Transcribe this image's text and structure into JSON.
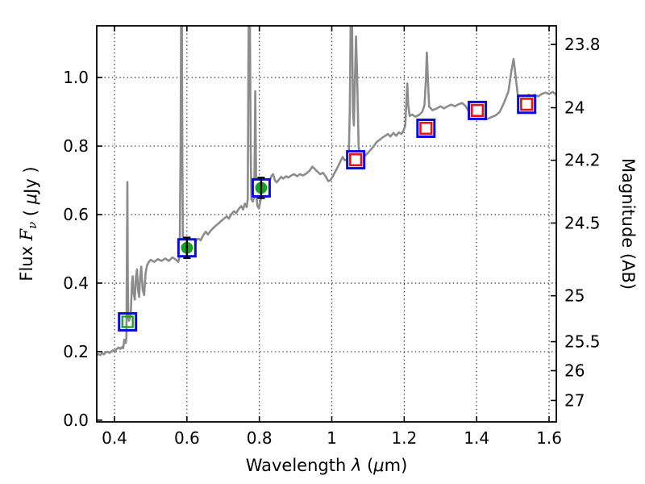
{
  "figure": {
    "background": "#ffffff",
    "border_color": "#000000",
    "grid_color": "#3a3a3a",
    "grid_style": "dotted"
  },
  "chart_data": {
    "type": "line",
    "title": "",
    "xlabel_parts": [
      {
        "t": "Wavelength  ",
        "i": false
      },
      {
        "t": "λ",
        "i": true
      },
      {
        "t": " (",
        "i": false
      },
      {
        "t": "μ",
        "i": true
      },
      {
        "t": "m)",
        "i": false
      }
    ],
    "ylabel_parts": [
      {
        "t": "Flux  ",
        "i": false
      },
      {
        "t": "F",
        "i": true,
        "serif": true
      },
      {
        "t": "ν",
        "i": true,
        "serif": true,
        "sub": true
      },
      {
        "t": "  ( ",
        "i": false
      },
      {
        "t": "μ",
        "i": true
      },
      {
        "t": "Jy )",
        "i": false
      }
    ],
    "y2label": "Magnitude (AB)",
    "x_range": [
      0.351,
      1.62
    ],
    "y_range": [
      -0.005,
      1.151
    ],
    "grid": true,
    "legend": "none",
    "x_ticks": [
      {
        "v": 0.4,
        "label": "0.4"
      },
      {
        "v": 0.6,
        "label": "0.6"
      },
      {
        "v": 0.8,
        "label": "0.8"
      },
      {
        "v": 1.0,
        "label": "1"
      },
      {
        "v": 1.2,
        "label": "1.2"
      },
      {
        "v": 1.4,
        "label": "1.4"
      },
      {
        "v": 1.6,
        "label": "1.6"
      }
    ],
    "y_ticks": [
      {
        "v": 0.0,
        "label": "0.0"
      },
      {
        "v": 0.2,
        "label": "0.2"
      },
      {
        "v": 0.4,
        "label": "0.4"
      },
      {
        "v": 0.6,
        "label": "0.6"
      },
      {
        "v": 0.8,
        "label": "0.8"
      },
      {
        "v": 1.0,
        "label": "1.0"
      }
    ],
    "y2_ticks": [
      {
        "label": "23.8",
        "flux": 1.0965
      },
      {
        "label": "24",
        "flux": 0.912
      },
      {
        "label": "24.2",
        "flux": 0.7586
      },
      {
        "label": "24.5",
        "flux": 0.5754
      },
      {
        "label": "25",
        "flux": 0.3631
      },
      {
        "label": "25.5",
        "flux": 0.2291
      },
      {
        "label": "26",
        "flux": 0.1445
      },
      {
        "label": "27",
        "flux": 0.0575
      }
    ],
    "colors": {
      "spectrum": "#8c8c8c",
      "blue_square": "#0a0ae6",
      "red_square": "#e81414",
      "green_marker": "#17a317",
      "errorbar": "#000000"
    },
    "spectrum_name": "galaxy-model-spectrum",
    "spectrum": [
      [
        0.351,
        0.19
      ],
      [
        0.356,
        0.193
      ],
      [
        0.361,
        0.19
      ],
      [
        0.366,
        0.196
      ],
      [
        0.371,
        0.192
      ],
      [
        0.376,
        0.198
      ],
      [
        0.381,
        0.2
      ],
      [
        0.386,
        0.196
      ],
      [
        0.391,
        0.2
      ],
      [
        0.396,
        0.204
      ],
      [
        0.401,
        0.2
      ],
      [
        0.406,
        0.208
      ],
      [
        0.411,
        0.212
      ],
      [
        0.416,
        0.208
      ],
      [
        0.42,
        0.213
      ],
      [
        0.424,
        0.21
      ],
      [
        0.427,
        0.235
      ],
      [
        0.429,
        0.23
      ],
      [
        0.431,
        0.225
      ],
      [
        0.433,
        0.24
      ],
      [
        0.4343,
        0.47
      ],
      [
        0.4355,
        0.695
      ],
      [
        0.4367,
        0.42
      ],
      [
        0.438,
        0.3
      ],
      [
        0.44,
        0.29
      ],
      [
        0.442,
        0.296
      ],
      [
        0.445,
        0.31
      ],
      [
        0.448,
        0.395
      ],
      [
        0.45,
        0.42
      ],
      [
        0.453,
        0.37
      ],
      [
        0.456,
        0.352
      ],
      [
        0.459,
        0.415
      ],
      [
        0.462,
        0.44
      ],
      [
        0.465,
        0.38
      ],
      [
        0.468,
        0.36
      ],
      [
        0.471,
        0.42
      ],
      [
        0.474,
        0.448
      ],
      [
        0.478,
        0.38
      ],
      [
        0.482,
        0.365
      ],
      [
        0.486,
        0.43
      ],
      [
        0.49,
        0.452
      ],
      [
        0.495,
        0.462
      ],
      [
        0.5,
        0.468
      ],
      [
        0.51,
        0.462
      ],
      [
        0.52,
        0.47
      ],
      [
        0.53,
        0.465
      ],
      [
        0.54,
        0.472
      ],
      [
        0.55,
        0.465
      ],
      [
        0.56,
        0.475
      ],
      [
        0.57,
        0.468
      ],
      [
        0.576,
        0.462
      ],
      [
        0.58,
        0.48
      ],
      [
        0.5825,
        0.8
      ],
      [
        0.5838,
        1.151
      ],
      [
        0.5862,
        1.151
      ],
      [
        0.5875,
        0.75
      ],
      [
        0.589,
        0.53
      ],
      [
        0.592,
        0.505
      ],
      [
        0.596,
        0.5
      ],
      [
        0.6,
        0.505
      ],
      [
        0.605,
        0.5
      ],
      [
        0.61,
        0.51
      ],
      [
        0.618,
        0.515
      ],
      [
        0.625,
        0.525
      ],
      [
        0.632,
        0.53
      ],
      [
        0.638,
        0.525
      ],
      [
        0.645,
        0.54
      ],
      [
        0.652,
        0.55
      ],
      [
        0.658,
        0.542
      ],
      [
        0.665,
        0.552
      ],
      [
        0.672,
        0.56
      ],
      [
        0.68,
        0.568
      ],
      [
        0.688,
        0.575
      ],
      [
        0.695,
        0.582
      ],
      [
        0.702,
        0.588
      ],
      [
        0.71,
        0.595
      ],
      [
        0.716,
        0.588
      ],
      [
        0.722,
        0.6
      ],
      [
        0.73,
        0.61
      ],
      [
        0.736,
        0.604
      ],
      [
        0.742,
        0.615
      ],
      [
        0.75,
        0.625
      ],
      [
        0.755,
        0.615
      ],
      [
        0.76,
        0.632
      ],
      [
        0.765,
        0.622
      ],
      [
        0.768,
        0.645
      ],
      [
        0.7695,
        1.0
      ],
      [
        0.7705,
        1.151
      ],
      [
        0.774,
        1.151
      ],
      [
        0.776,
        0.8
      ],
      [
        0.778,
        0.645
      ],
      [
        0.782,
        0.638
      ],
      [
        0.786,
        0.652
      ],
      [
        0.7888,
        0.96
      ],
      [
        0.7915,
        0.655
      ],
      [
        0.795,
        0.625
      ],
      [
        0.799,
        0.618
      ],
      [
        0.803,
        0.64
      ],
      [
        0.807,
        0.662
      ],
      [
        0.811,
        0.678
      ],
      [
        0.816,
        0.69
      ],
      [
        0.822,
        0.7
      ],
      [
        0.827,
        0.694
      ],
      [
        0.833,
        0.712
      ],
      [
        0.838,
        0.718
      ],
      [
        0.843,
        0.7
      ],
      [
        0.848,
        0.694
      ],
      [
        0.854,
        0.702
      ],
      [
        0.86,
        0.71
      ],
      [
        0.866,
        0.705
      ],
      [
        0.874,
        0.712
      ],
      [
        0.88,
        0.708
      ],
      [
        0.888,
        0.714
      ],
      [
        0.896,
        0.718
      ],
      [
        0.904,
        0.712
      ],
      [
        0.912,
        0.718
      ],
      [
        0.92,
        0.714
      ],
      [
        0.93,
        0.72
      ],
      [
        0.94,
        0.73
      ],
      [
        0.946,
        0.74
      ],
      [
        0.952,
        0.734
      ],
      [
        0.96,
        0.726
      ],
      [
        0.968,
        0.718
      ],
      [
        0.976,
        0.722
      ],
      [
        0.984,
        0.71
      ],
      [
        0.99,
        0.698
      ],
      [
        0.996,
        0.7
      ],
      [
        1.002,
        0.71
      ],
      [
        1.01,
        0.726
      ],
      [
        1.018,
        0.742
      ],
      [
        1.025,
        0.758
      ],
      [
        1.03,
        0.768
      ],
      [
        1.036,
        0.758
      ],
      [
        1.042,
        0.762
      ],
      [
        1.047,
        0.775
      ],
      [
        1.0497,
        0.9
      ],
      [
        1.052,
        1.151
      ],
      [
        1.056,
        1.151
      ],
      [
        1.0585,
        0.9
      ],
      [
        1.061,
        0.86
      ],
      [
        1.064,
        1.0
      ],
      [
        1.067,
        1.12
      ],
      [
        1.07,
        1.0
      ],
      [
        1.074,
        0.8
      ],
      [
        1.078,
        0.772
      ],
      [
        1.085,
        0.766
      ],
      [
        1.092,
        0.772
      ],
      [
        1.1,
        0.78
      ],
      [
        1.108,
        0.79
      ],
      [
        1.116,
        0.8
      ],
      [
        1.124,
        0.812
      ],
      [
        1.132,
        0.818
      ],
      [
        1.14,
        0.825
      ],
      [
        1.148,
        0.83
      ],
      [
        1.155,
        0.835
      ],
      [
        1.162,
        0.828
      ],
      [
        1.17,
        0.838
      ],
      [
        1.178,
        0.83
      ],
      [
        1.185,
        0.84
      ],
      [
        1.192,
        0.835
      ],
      [
        1.198,
        0.845
      ],
      [
        1.203,
        0.86
      ],
      [
        1.206,
        0.93
      ],
      [
        1.2085,
        0.983
      ],
      [
        1.211,
        0.92
      ],
      [
        1.215,
        0.888
      ],
      [
        1.222,
        0.892
      ],
      [
        1.23,
        0.886
      ],
      [
        1.24,
        0.89
      ],
      [
        1.25,
        0.9
      ],
      [
        1.256,
        0.92
      ],
      [
        1.26,
        0.995
      ],
      [
        1.2625,
        1.073
      ],
      [
        1.2655,
        0.99
      ],
      [
        1.269,
        0.915
      ],
      [
        1.278,
        0.905
      ],
      [
        1.29,
        0.91
      ],
      [
        1.3,
        0.916
      ],
      [
        1.31,
        0.91
      ],
      [
        1.32,
        0.916
      ],
      [
        1.33,
        0.921
      ],
      [
        1.34,
        0.916
      ],
      [
        1.35,
        0.922
      ],
      [
        1.36,
        0.926
      ],
      [
        1.364,
        0.922
      ],
      [
        1.37,
        0.916
      ],
      [
        1.376,
        0.905
      ],
      [
        1.382,
        0.892
      ],
      [
        1.39,
        0.898
      ],
      [
        1.398,
        0.902
      ],
      [
        1.406,
        0.895
      ],
      [
        1.414,
        0.882
      ],
      [
        1.422,
        0.878
      ],
      [
        1.432,
        0.88
      ],
      [
        1.442,
        0.885
      ],
      [
        1.453,
        0.89
      ],
      [
        1.464,
        0.9
      ],
      [
        1.475,
        0.925
      ],
      [
        1.488,
        0.96
      ],
      [
        1.496,
        1.02
      ],
      [
        1.502,
        1.054
      ],
      [
        1.508,
        1.0
      ],
      [
        1.514,
        0.945
      ],
      [
        1.52,
        0.932
      ],
      [
        1.528,
        0.938
      ],
      [
        1.536,
        0.945
      ],
      [
        1.544,
        0.95
      ],
      [
        1.552,
        0.945
      ],
      [
        1.56,
        0.95
      ],
      [
        1.57,
        0.945
      ],
      [
        1.58,
        0.952
      ],
      [
        1.59,
        0.956
      ],
      [
        1.6,
        0.952
      ],
      [
        1.61,
        0.958
      ],
      [
        1.62,
        0.95
      ]
    ],
    "photometry": [
      {
        "lambda": 0.436,
        "flux": 0.287,
        "outer": "blue-open-square",
        "inner": "green-open-square",
        "errorbar": null,
        "opaque": false
      },
      {
        "lambda": 0.6,
        "flux": 0.503,
        "outer": "blue-open-square",
        "inner": "green-filled-circle",
        "errorbar": 0.03,
        "opaque": true
      },
      {
        "lambda": 0.805,
        "flux": 0.678,
        "outer": "blue-open-square",
        "inner": "green-filled-circle",
        "errorbar": 0.03,
        "opaque": true
      },
      {
        "lambda": 1.066,
        "flux": 0.76,
        "outer": "blue-open-square",
        "inner": "red-open-square",
        "errorbar": null,
        "opaque": true
      },
      {
        "lambda": 1.26,
        "flux": 0.852,
        "outer": "blue-open-square",
        "inner": "red-open-square",
        "errorbar": null,
        "opaque": true
      },
      {
        "lambda": 1.402,
        "flux": 0.904,
        "outer": "blue-open-square",
        "inner": "red-open-square",
        "errorbar": null,
        "opaque": true
      },
      {
        "lambda": 1.538,
        "flux": 0.922,
        "outer": "blue-open-square",
        "inner": "red-open-square",
        "errorbar": null,
        "opaque": true
      }
    ]
  }
}
